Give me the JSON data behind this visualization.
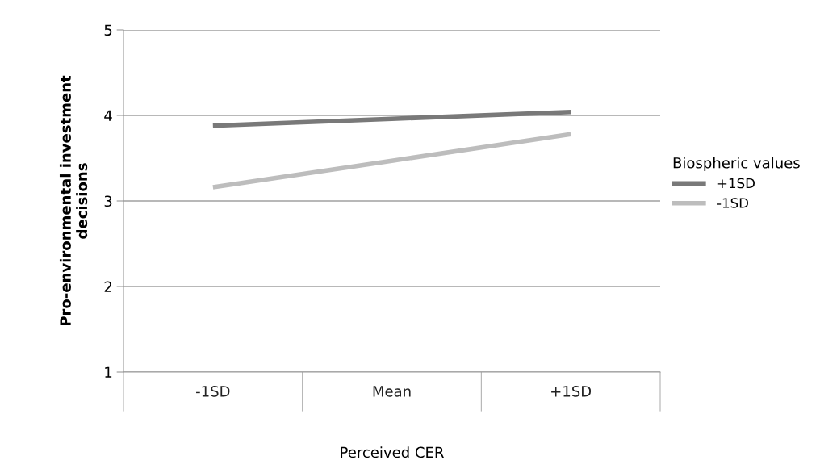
{
  "chart_data": {
    "type": "line",
    "xlabel": "Perceived CER",
    "ylabel": "Pro-environmental investment\ndecisions",
    "categories": [
      "-1SD",
      "Mean",
      "+1SD"
    ],
    "series": [
      {
        "name": "+1SD",
        "color": "#797979",
        "values": [
          3.88,
          3.96,
          4.04
        ]
      },
      {
        "name": "-1SD",
        "color": "#bdbdbd",
        "values": [
          3.16,
          3.47,
          3.78
        ]
      }
    ],
    "legend_title": "Biospheric values",
    "legend": "right",
    "ylim": [
      1,
      5
    ],
    "yticks": [
      1,
      2,
      3,
      4,
      5
    ],
    "grid": "y",
    "marker": "none",
    "line_style": "solid"
  }
}
